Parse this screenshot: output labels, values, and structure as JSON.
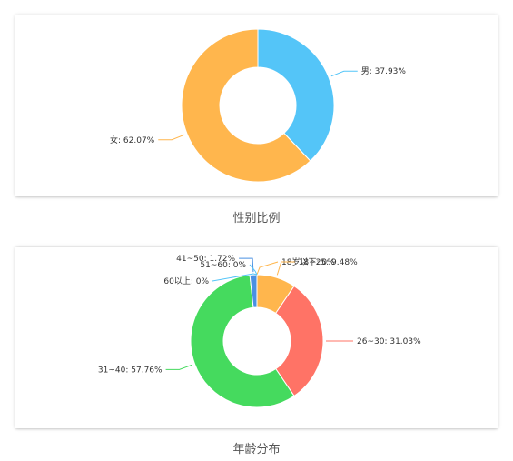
{
  "chart_data": [
    {
      "type": "pie",
      "donut": true,
      "title": "性别比例",
      "slices": [
        {
          "name": "男",
          "value": 37.93,
          "label": "男: 37.93%",
          "color": "#54C5F8"
        },
        {
          "name": "女",
          "value": 62.07,
          "label": "女: 62.07%",
          "color": "#FFB64D"
        }
      ]
    },
    {
      "type": "pie",
      "donut": true,
      "title": "年龄分布",
      "slices": [
        {
          "name": "18岁以下",
          "value": 0,
          "label": "18岁以下: 0%",
          "color": "#FFB64D"
        },
        {
          "name": "18~25",
          "value": 9.48,
          "label": "18~25: 9.48%",
          "color": "#FFB64D"
        },
        {
          "name": "26~30",
          "value": 31.03,
          "label": "26~30: 31.03%",
          "color": "#FF7366"
        },
        {
          "name": "31~40",
          "value": 57.76,
          "label": "31~40: 57.76%",
          "color": "#45DA5E"
        },
        {
          "name": "41~50",
          "value": 1.72,
          "label": "41~50: 1.72%",
          "color": "#4A90E2"
        },
        {
          "name": "60以上",
          "value": 0,
          "label": "60以上: 0%",
          "color": "#54C5F8"
        },
        {
          "name": "51~60",
          "value": 0,
          "label": "51~60: 0%",
          "color": "#54C5F8"
        }
      ]
    }
  ]
}
